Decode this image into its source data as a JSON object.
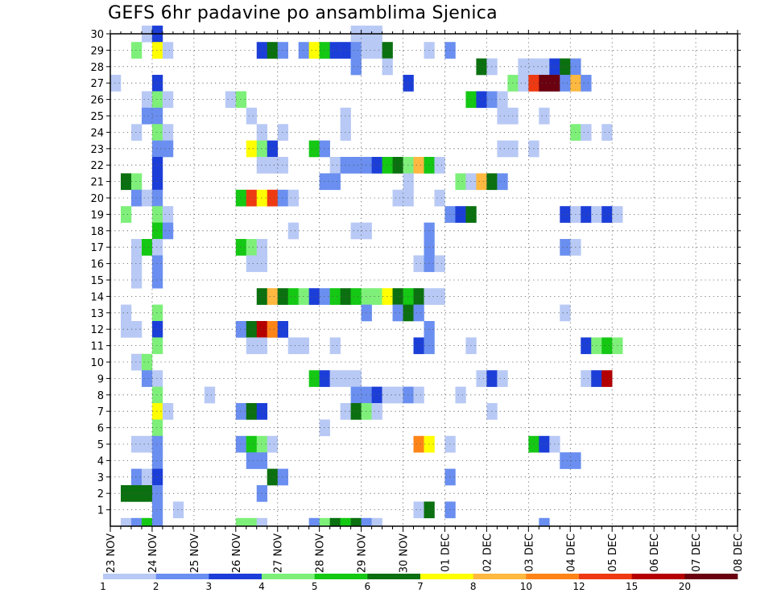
{
  "title": "GEFS 6hr padavine po ansamblima Sjenica",
  "chart_data": {
    "type": "heatmap",
    "title": "GEFS 6hr padavine po ansamblima Sjenica",
    "x_tick_labels": [
      "23 NOV",
      "24 NOV",
      "25 NOV",
      "26 NOV",
      "27 NOV",
      "28 NOV",
      "29 NOV",
      "30 NOV",
      "01 DEC",
      "02 DEC",
      "03 DEC",
      "04 DEC",
      "05 DEC",
      "06 DEC",
      "07 DEC",
      "08 DEC"
    ],
    "y_tick_labels": [
      "1",
      "2",
      "3",
      "4",
      "5",
      "6",
      "7",
      "8",
      "9",
      "10",
      "11",
      "12",
      "13",
      "14",
      "15",
      "16",
      "17",
      "18",
      "19",
      "20",
      "21",
      "22",
      "23",
      "24",
      "25",
      "26",
      "27",
      "28",
      "29",
      "30"
    ],
    "x_step": "6hr",
    "ylim": [
      0,
      30
    ],
    "grid": true,
    "colorbar": {
      "labels": [
        "1",
        "2",
        "3",
        "4",
        "5",
        "6",
        "7",
        "8",
        "10",
        "12",
        "15",
        "20"
      ],
      "colors": [
        "#b8c9f5",
        "#6a8ff0",
        "#1c3ed8",
        "#7ef07a",
        "#14c814",
        "#0b7010",
        "#ffff00",
        "#ffb840",
        "#ff8418",
        "#ee3a12",
        "#b40000",
        "#6a0010"
      ]
    },
    "cells_format": "[member, x index in 6hr steps from 23 NOV 00, color bin]",
    "cells": [
      [
        30,
        3,
        1
      ],
      [
        30,
        4,
        3
      ],
      [
        30,
        23,
        1
      ],
      [
        30,
        24,
        1
      ],
      [
        30,
        25,
        1
      ],
      [
        29,
        2,
        4
      ],
      [
        29,
        4,
        7
      ],
      [
        29,
        5,
        1
      ],
      [
        29,
        14,
        3
      ],
      [
        29,
        15,
        6
      ],
      [
        29,
        16,
        2
      ],
      [
        29,
        18,
        2
      ],
      [
        29,
        19,
        7
      ],
      [
        29,
        20,
        5
      ],
      [
        29,
        21,
        3
      ],
      [
        29,
        22,
        3
      ],
      [
        29,
        23,
        2
      ],
      [
        29,
        24,
        1
      ],
      [
        29,
        25,
        1
      ],
      [
        29,
        26,
        6
      ],
      [
        29,
        30,
        1
      ],
      [
        29,
        32,
        2
      ],
      [
        28,
        23,
        2
      ],
      [
        28,
        26,
        1
      ],
      [
        28,
        35,
        6
      ],
      [
        28,
        36,
        1
      ],
      [
        28,
        39,
        1
      ],
      [
        28,
        40,
        1
      ],
      [
        28,
        41,
        1
      ],
      [
        28,
        42,
        3
      ],
      [
        28,
        43,
        6
      ],
      [
        28,
        44,
        2
      ],
      [
        27,
        0,
        1
      ],
      [
        27,
        4,
        3
      ],
      [
        27,
        28,
        3
      ],
      [
        27,
        38,
        4
      ],
      [
        27,
        39,
        1
      ],
      [
        27,
        40,
        10
      ],
      [
        27,
        41,
        12
      ],
      [
        27,
        42,
        12
      ],
      [
        27,
        43,
        2
      ],
      [
        27,
        44,
        8
      ],
      [
        27,
        45,
        2
      ],
      [
        26,
        3,
        1
      ],
      [
        26,
        4,
        4
      ],
      [
        26,
        5,
        1
      ],
      [
        26,
        11,
        1
      ],
      [
        26,
        12,
        4
      ],
      [
        26,
        34,
        5
      ],
      [
        26,
        35,
        3
      ],
      [
        26,
        36,
        2
      ],
      [
        26,
        37,
        1
      ],
      [
        25,
        3,
        2
      ],
      [
        25,
        4,
        2
      ],
      [
        25,
        13,
        1
      ],
      [
        25,
        22,
        1
      ],
      [
        25,
        37,
        1
      ],
      [
        25,
        38,
        1
      ],
      [
        25,
        41,
        1
      ],
      [
        24,
        2,
        1
      ],
      [
        24,
        4,
        4
      ],
      [
        24,
        5,
        1
      ],
      [
        24,
        14,
        1
      ],
      [
        24,
        16,
        1
      ],
      [
        24,
        22,
        1
      ],
      [
        24,
        44,
        4
      ],
      [
        24,
        45,
        1
      ],
      [
        24,
        47,
        1
      ],
      [
        23,
        4,
        2
      ],
      [
        23,
        5,
        2
      ],
      [
        23,
        13,
        7
      ],
      [
        23,
        14,
        4
      ],
      [
        23,
        15,
        3
      ],
      [
        23,
        19,
        5
      ],
      [
        23,
        20,
        2
      ],
      [
        23,
        37,
        1
      ],
      [
        23,
        38,
        1
      ],
      [
        23,
        40,
        1
      ],
      [
        22,
        4,
        3
      ],
      [
        22,
        14,
        1
      ],
      [
        22,
        15,
        1
      ],
      [
        22,
        16,
        1
      ],
      [
        22,
        21,
        1
      ],
      [
        22,
        22,
        2
      ],
      [
        22,
        23,
        2
      ],
      [
        22,
        24,
        2
      ],
      [
        22,
        25,
        3
      ],
      [
        22,
        26,
        5
      ],
      [
        22,
        27,
        6
      ],
      [
        22,
        28,
        4
      ],
      [
        22,
        29,
        8
      ],
      [
        22,
        30,
        5
      ],
      [
        22,
        31,
        1
      ],
      [
        21,
        1,
        6
      ],
      [
        21,
        2,
        4
      ],
      [
        21,
        4,
        3
      ],
      [
        21,
        20,
        2
      ],
      [
        21,
        21,
        2
      ],
      [
        21,
        28,
        1
      ],
      [
        21,
        33,
        4
      ],
      [
        21,
        34,
        1
      ],
      [
        21,
        35,
        8
      ],
      [
        21,
        36,
        6
      ],
      [
        21,
        37,
        2
      ],
      [
        20,
        2,
        2
      ],
      [
        20,
        3,
        1
      ],
      [
        20,
        4,
        2
      ],
      [
        20,
        12,
        5
      ],
      [
        20,
        13,
        10
      ],
      [
        20,
        14,
        7
      ],
      [
        20,
        15,
        10
      ],
      [
        20,
        16,
        2
      ],
      [
        20,
        17,
        1
      ],
      [
        20,
        27,
        1
      ],
      [
        20,
        28,
        1
      ],
      [
        20,
        31,
        1
      ],
      [
        19,
        1,
        4
      ],
      [
        19,
        4,
        4
      ],
      [
        19,
        5,
        1
      ],
      [
        19,
        32,
        2
      ],
      [
        19,
        33,
        3
      ],
      [
        19,
        34,
        6
      ],
      [
        19,
        43,
        3
      ],
      [
        19,
        44,
        1
      ],
      [
        19,
        45,
        3
      ],
      [
        19,
        46,
        1
      ],
      [
        19,
        47,
        3
      ],
      [
        19,
        48,
        1
      ],
      [
        18,
        4,
        5
      ],
      [
        18,
        5,
        2
      ],
      [
        18,
        17,
        1
      ],
      [
        18,
        23,
        1
      ],
      [
        18,
        24,
        1
      ],
      [
        18,
        30,
        2
      ],
      [
        17,
        2,
        1
      ],
      [
        17,
        3,
        5
      ],
      [
        17,
        4,
        1
      ],
      [
        17,
        12,
        5
      ],
      [
        17,
        13,
        4
      ],
      [
        17,
        14,
        1
      ],
      [
        17,
        30,
        2
      ],
      [
        17,
        43,
        2
      ],
      [
        17,
        44,
        1
      ],
      [
        16,
        2,
        1
      ],
      [
        16,
        4,
        2
      ],
      [
        16,
        13,
        1
      ],
      [
        16,
        14,
        1
      ],
      [
        16,
        29,
        1
      ],
      [
        16,
        30,
        2
      ],
      [
        16,
        31,
        1
      ],
      [
        15,
        2,
        1
      ],
      [
        15,
        4,
        2
      ],
      [
        14,
        14,
        6
      ],
      [
        14,
        15,
        8
      ],
      [
        14,
        16,
        6
      ],
      [
        14,
        17,
        5
      ],
      [
        14,
        18,
        4
      ],
      [
        14,
        19,
        3
      ],
      [
        14,
        20,
        2
      ],
      [
        14,
        21,
        5
      ],
      [
        14,
        22,
        6
      ],
      [
        14,
        23,
        5
      ],
      [
        14,
        24,
        4
      ],
      [
        14,
        25,
        4
      ],
      [
        14,
        26,
        7
      ],
      [
        14,
        27,
        6
      ],
      [
        14,
        28,
        5
      ],
      [
        14,
        29,
        6
      ],
      [
        14,
        30,
        1
      ],
      [
        14,
        31,
        1
      ],
      [
        13,
        1,
        1
      ],
      [
        13,
        4,
        4
      ],
      [
        13,
        24,
        2
      ],
      [
        13,
        27,
        2
      ],
      [
        13,
        28,
        6
      ],
      [
        13,
        29,
        2
      ],
      [
        13,
        43,
        1
      ],
      [
        12,
        1,
        1
      ],
      [
        12,
        2,
        1
      ],
      [
        12,
        4,
        3
      ],
      [
        12,
        12,
        2
      ],
      [
        12,
        13,
        6
      ],
      [
        12,
        14,
        11
      ],
      [
        12,
        15,
        9
      ],
      [
        12,
        16,
        3
      ],
      [
        12,
        30,
        2
      ],
      [
        11,
        4,
        4
      ],
      [
        11,
        13,
        1
      ],
      [
        11,
        14,
        1
      ],
      [
        11,
        17,
        1
      ],
      [
        11,
        18,
        1
      ],
      [
        11,
        21,
        1
      ],
      [
        11,
        29,
        3
      ],
      [
        11,
        30,
        2
      ],
      [
        11,
        34,
        1
      ],
      [
        11,
        45,
        3
      ],
      [
        11,
        46,
        4
      ],
      [
        11,
        47,
        5
      ],
      [
        11,
        48,
        4
      ],
      [
        10,
        2,
        1
      ],
      [
        10,
        3,
        4
      ],
      [
        9,
        3,
        2
      ],
      [
        9,
        4,
        1
      ],
      [
        9,
        19,
        5
      ],
      [
        9,
        20,
        3
      ],
      [
        9,
        21,
        1
      ],
      [
        9,
        22,
        1
      ],
      [
        9,
        23,
        1
      ],
      [
        9,
        35,
        1
      ],
      [
        9,
        36,
        3
      ],
      [
        9,
        37,
        1
      ],
      [
        9,
        45,
        1
      ],
      [
        9,
        46,
        3
      ],
      [
        9,
        47,
        11
      ],
      [
        8,
        4,
        4
      ],
      [
        8,
        9,
        1
      ],
      [
        8,
        23,
        2
      ],
      [
        8,
        24,
        2
      ],
      [
        8,
        25,
        3
      ],
      [
        8,
        26,
        1
      ],
      [
        8,
        27,
        1
      ],
      [
        8,
        28,
        2
      ],
      [
        8,
        29,
        1
      ],
      [
        8,
        33,
        1
      ],
      [
        7,
        4,
        7
      ],
      [
        7,
        5,
        1
      ],
      [
        7,
        12,
        2
      ],
      [
        7,
        13,
        6
      ],
      [
        7,
        14,
        3
      ],
      [
        7,
        22,
        1
      ],
      [
        7,
        23,
        6
      ],
      [
        7,
        24,
        4
      ],
      [
        7,
        25,
        1
      ],
      [
        7,
        36,
        1
      ],
      [
        6,
        4,
        4
      ],
      [
        6,
        20,
        1
      ],
      [
        5,
        2,
        1
      ],
      [
        5,
        3,
        1
      ],
      [
        5,
        4,
        2
      ],
      [
        5,
        12,
        2
      ],
      [
        5,
        13,
        5
      ],
      [
        5,
        14,
        4
      ],
      [
        5,
        15,
        1
      ],
      [
        5,
        29,
        9
      ],
      [
        5,
        30,
        7
      ],
      [
        5,
        32,
        1
      ],
      [
        5,
        40,
        5
      ],
      [
        5,
        41,
        3
      ],
      [
        5,
        42,
        1
      ],
      [
        4,
        4,
        2
      ],
      [
        4,
        13,
        2
      ],
      [
        4,
        14,
        2
      ],
      [
        4,
        43,
        2
      ],
      [
        4,
        44,
        2
      ],
      [
        3,
        2,
        2
      ],
      [
        3,
        3,
        1
      ],
      [
        3,
        4,
        3
      ],
      [
        3,
        15,
        6
      ],
      [
        3,
        16,
        2
      ],
      [
        3,
        32,
        2
      ],
      [
        2,
        1,
        6
      ],
      [
        2,
        2,
        6
      ],
      [
        2,
        3,
        6
      ],
      [
        2,
        4,
        2
      ],
      [
        2,
        14,
        2
      ],
      [
        1,
        4,
        2
      ],
      [
        1,
        6,
        1
      ],
      [
        1,
        29,
        1
      ],
      [
        1,
        30,
        6
      ],
      [
        1,
        32,
        2
      ]
    ],
    "bottom_row_format": "[x index, color bin] (cells drawn along the x axis)",
    "bottom_row": [
      [
        1,
        1
      ],
      [
        2,
        2
      ],
      [
        3,
        5
      ],
      [
        4,
        2
      ],
      [
        12,
        4
      ],
      [
        13,
        4
      ],
      [
        14,
        1
      ],
      [
        19,
        2
      ],
      [
        20,
        4
      ],
      [
        21,
        6
      ],
      [
        22,
        5
      ],
      [
        23,
        6
      ],
      [
        24,
        2
      ],
      [
        25,
        1
      ],
      [
        41,
        2
      ]
    ]
  }
}
